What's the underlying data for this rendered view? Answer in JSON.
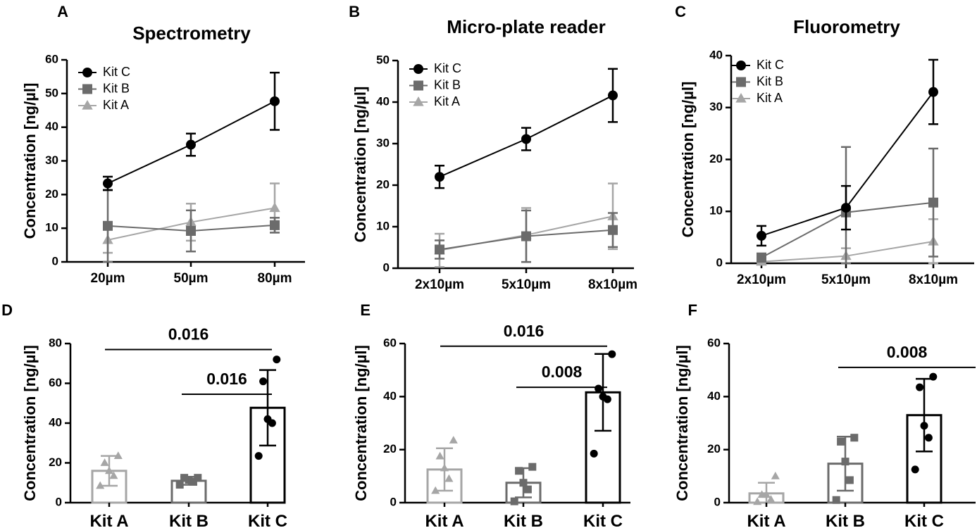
{
  "colors": {
    "kitA": "#a6a6a6",
    "kitB": "#6b6b6b",
    "kitC": "#000000"
  },
  "chart_data": [
    {
      "panel": "A",
      "type": "line",
      "title": "Spectrometry",
      "ylabel": "Concentration [ng/µl]",
      "xlabel": "",
      "categories": [
        "20µm",
        "50µm",
        "80µm"
      ],
      "ylim": [
        0,
        60
      ],
      "yticks": [
        0,
        10,
        20,
        30,
        40,
        50,
        60
      ],
      "legend_position": "top-left",
      "series": [
        {
          "name": "Kit C",
          "marker": "circle",
          "values": [
            23.3,
            34.8,
            47.7
          ],
          "errors": [
            2,
            3.3,
            8.5
          ]
        },
        {
          "name": "Kit B",
          "marker": "square",
          "values": [
            10.7,
            9.2,
            10.9
          ],
          "errors": [
            10.7,
            6.1,
            2.2
          ]
        },
        {
          "name": "Kit A",
          "marker": "triangle",
          "values": [
            6.5,
            11.8,
            16.0
          ],
          "errors": [
            3.8,
            5.5,
            7.3
          ]
        }
      ]
    },
    {
      "panel": "B",
      "type": "line",
      "title": "Micro-plate reader",
      "ylabel": "Concentration [ng/µl]",
      "xlabel": "",
      "categories": [
        "2x10µm",
        "5x10µm",
        "8x10µm"
      ],
      "ylim": [
        0,
        50
      ],
      "yticks": [
        0,
        10,
        20,
        30,
        40,
        50
      ],
      "legend_position": "top-left",
      "series": [
        {
          "name": "Kit C",
          "marker": "circle",
          "values": [
            22.0,
            31.1,
            41.6
          ],
          "errors": [
            2.7,
            2.7,
            6.4
          ]
        },
        {
          "name": "Kit B",
          "marker": "square",
          "values": [
            4.5,
            7.7,
            9.2
          ],
          "errors": [
            2.2,
            6.2,
            4.1
          ]
        },
        {
          "name": "Kit A",
          "marker": "triangle",
          "values": [
            4.3,
            8.0,
            12.5
          ],
          "errors": [
            4.0,
            6.5,
            7.9
          ]
        }
      ]
    },
    {
      "panel": "C",
      "type": "line",
      "title": "Fluorometry",
      "ylabel": "Concentration [ng/µl]",
      "xlabel": "",
      "categories": [
        "2x10µm",
        "5x10µm",
        "8x10µm"
      ],
      "ylim": [
        0,
        40
      ],
      "yticks": [
        0,
        10,
        20,
        30,
        40
      ],
      "legend_position": "top-left",
      "series": [
        {
          "name": "Kit C",
          "marker": "circle",
          "values": [
            5.3,
            10.7,
            33.0
          ],
          "errors": [
            1.9,
            4.2,
            6.2
          ]
        },
        {
          "name": "Kit B",
          "marker": "square",
          "values": [
            1.1,
            9.8,
            11.7
          ],
          "errors": [
            0.8,
            12.6,
            10.4
          ]
        },
        {
          "name": "Kit A",
          "marker": "triangle",
          "values": [
            0.3,
            1.4,
            4.2
          ],
          "errors": [
            0.2,
            1.5,
            4.3
          ]
        }
      ]
    },
    {
      "panel": "D",
      "type": "bar",
      "ylabel": "Concentration [ng/µl]",
      "xlabel": "",
      "categories": [
        "Kit A",
        "Kit B",
        "Kit C"
      ],
      "ylim": [
        0,
        80
      ],
      "yticks": [
        0,
        20,
        40,
        60,
        80
      ],
      "values": [
        16.0,
        11.0,
        47.7
      ],
      "errors": [
        7.5,
        2.0,
        19.0
      ],
      "points": [
        [
          8.5,
          13.5,
          16.0,
          20.0,
          23.5
        ],
        [
          9.0,
          10.5,
          11.5,
          12.5,
          12.5
        ],
        [
          23.5,
          40.0,
          42.0,
          61.0,
          72.0
        ]
      ],
      "markers": [
        "triangle",
        "square",
        "circle"
      ],
      "significance": [
        {
          "from": 0,
          "to": 2,
          "label": "0.016",
          "y": 77
        },
        {
          "from": 1,
          "to": 2,
          "label": "0.016",
          "y": 54.5
        }
      ]
    },
    {
      "panel": "E",
      "type": "bar",
      "ylabel": "Concentration [ng/µl]",
      "xlabel": "",
      "categories": [
        "Kit A",
        "Kit B",
        "Kit C"
      ],
      "ylim": [
        0,
        60
      ],
      "yticks": [
        0,
        20,
        40,
        60
      ],
      "values": [
        12.5,
        7.5,
        41.6
      ],
      "errors": [
        8.0,
        5.5,
        14.5
      ],
      "points": [
        [
          4.5,
          9.0,
          13.0,
          17.5,
          23.5
        ],
        [
          0.5,
          5.0,
          7.5,
          12.0,
          13.5
        ],
        [
          18.5,
          39.0,
          40.0,
          43.0,
          56.0
        ]
      ],
      "markers": [
        "triangle",
        "square",
        "circle"
      ],
      "significance": [
        {
          "from": 0,
          "to": 2,
          "label": "0.016",
          "y": 59
        },
        {
          "from": 1,
          "to": 2,
          "label": "0.008",
          "y": 43.5
        }
      ]
    },
    {
      "panel": "F",
      "type": "bar",
      "ylabel": "Concentration [ng/µl]",
      "xlabel": "",
      "categories": [
        "Kit A",
        "Kit B",
        "Kit C"
      ],
      "ylim": [
        0,
        60
      ],
      "yticks": [
        0,
        20,
        40,
        60
      ],
      "values": [
        3.5,
        14.7,
        33.0
      ],
      "errors": [
        4.0,
        10.2,
        13.7
      ],
      "points": [
        [
          0.3,
          1.2,
          3.0,
          3.0,
          10.0
        ],
        [
          1.0,
          8.5,
          15.5,
          23.0,
          24.5
        ],
        [
          12.5,
          24.5,
          29.0,
          43.5,
          47.5
        ]
      ],
      "markers": [
        "triangle",
        "square",
        "circle"
      ],
      "significance": [
        {
          "from": 1,
          "to": 3,
          "label": "0.008",
          "y": 51
        }
      ]
    }
  ]
}
